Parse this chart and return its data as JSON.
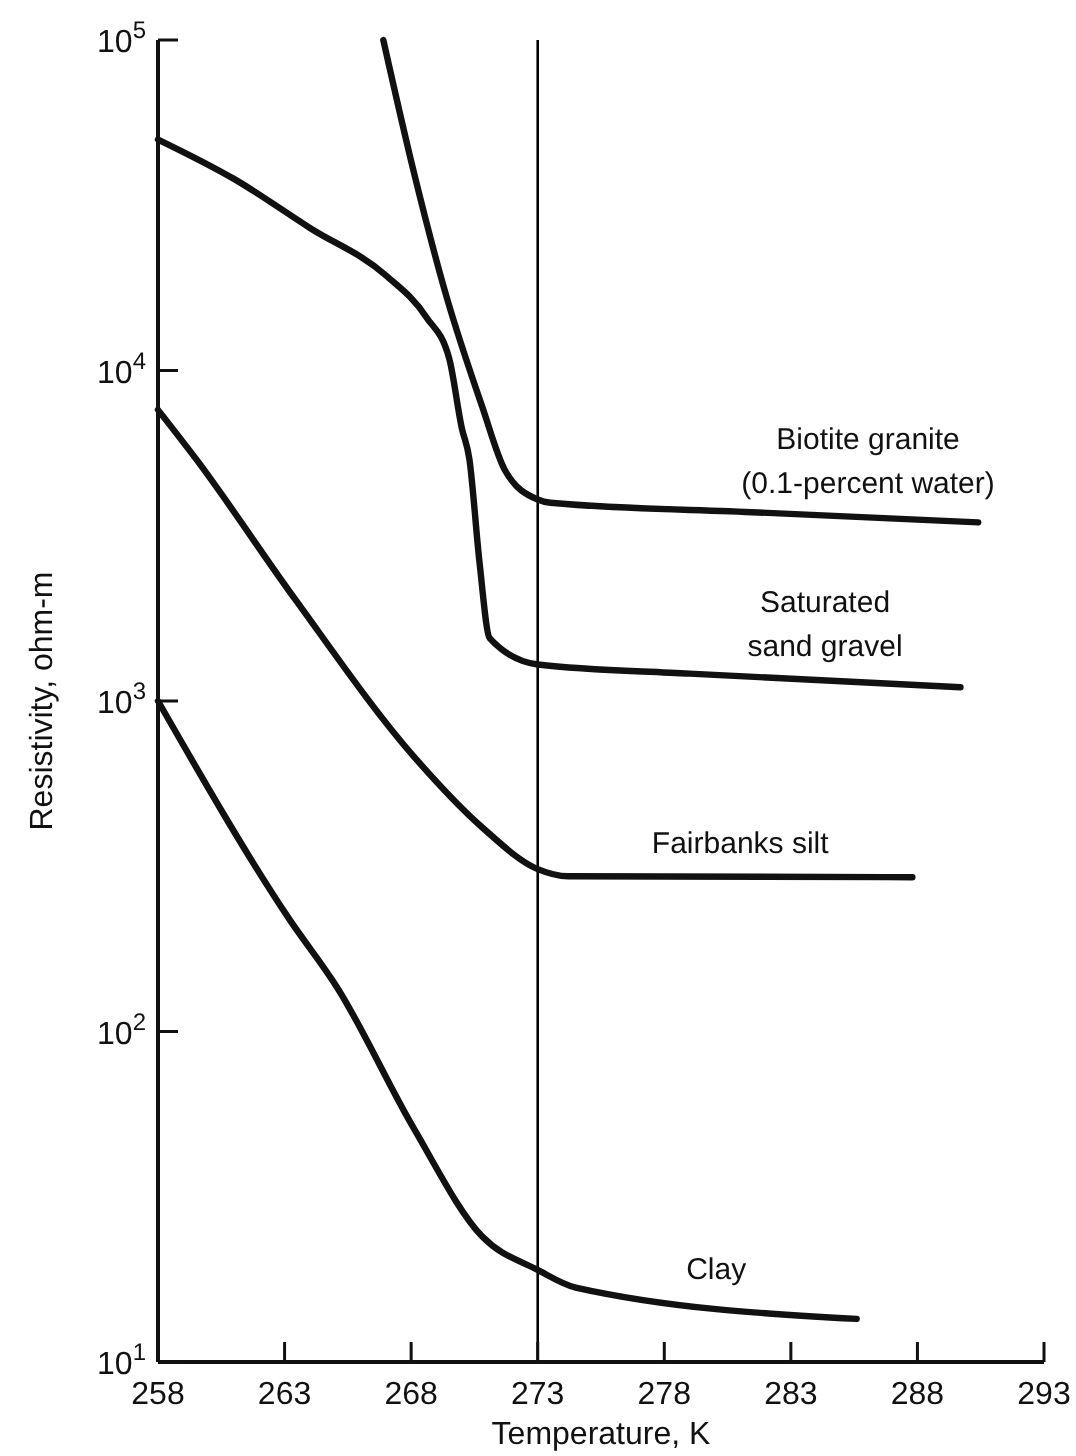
{
  "chart_data": {
    "type": "line",
    "xlabel": "Temperature, K",
    "ylabel": "Resistivity, ohm-m",
    "log": "y",
    "grid": false,
    "marker": "none",
    "line_style": "solid",
    "xlim": [
      258,
      293
    ],
    "xticks": [
      258,
      263,
      268,
      273,
      278,
      283,
      288,
      293
    ],
    "ylim": [
      10,
      100000
    ],
    "yticks": [
      {
        "value": 10,
        "label": "10$^{1}$"
      },
      {
        "value": 100,
        "label": "10$^{2}$"
      },
      {
        "value": 1000,
        "label": "10$^{3}$"
      },
      {
        "value": 10000,
        "label": "10$^{4}$"
      },
      {
        "value": 100000,
        "label": "10$^{5}$"
      }
    ],
    "ref_lines": [
      {
        "axis": "x",
        "value": 273,
        "color": "#000000"
      }
    ],
    "series": [
      {
        "name": "Biotite granite\n(0.1-percent water)",
        "color": "#111111",
        "x": [
          266.9,
          268.1,
          269.4,
          270.8,
          271.7,
          273.0,
          273.5,
          281.7,
          290.4
        ],
        "values": [
          100000,
          40000,
          16700,
          7800,
          5000,
          4070,
          3980,
          3720,
          3470
        ]
      },
      {
        "name": "Saturated\nsand gravel",
        "color": "#111111",
        "x": [
          258,
          261,
          264,
          267,
          268.6,
          269.5,
          270,
          270.3,
          270.7,
          271.1,
          273,
          279,
          289.7
        ],
        "values": [
          50000,
          38000,
          27000,
          19400,
          14500,
          10900,
          6700,
          5400,
          2630,
          1550,
          1290,
          1210,
          1100
        ]
      },
      {
        "name": "Fairbanks silt",
        "color": "#111111",
        "x": [
          258,
          259.5,
          263.4,
          268.1,
          270.8,
          273,
          274.2,
          287.8
        ],
        "values": [
          7600,
          5400,
          2040,
          680,
          415,
          310,
          295,
          293
        ]
      },
      {
        "name": "Clay",
        "color": "#111111",
        "x": [
          258,
          263.2,
          265.1,
          268.1,
          270.8,
          273,
          274.5,
          285.6
        ],
        "values": [
          1000,
          218,
          135,
          51,
          24,
          19,
          16.8,
          13.5
        ]
      }
    ]
  }
}
